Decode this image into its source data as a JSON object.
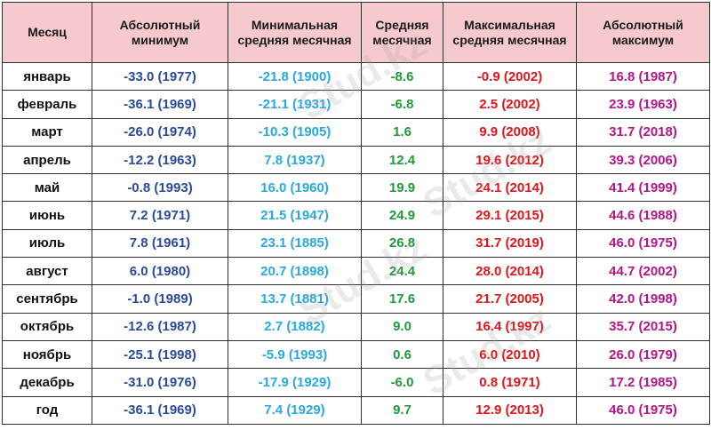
{
  "headers": {
    "month": "Месяц",
    "abs_min": "Абсолютный минимум",
    "min_avg": "Минимальная средняя месячная",
    "avg": "Средняя месячная",
    "max_avg": "Максимальная средняя месячная",
    "abs_max": "Абсолютный максимум"
  },
  "rows": [
    {
      "month": "январь",
      "abs_min": "-33.0 (1977)",
      "min_avg": "-21.8 (1900)",
      "avg": "-8.6",
      "max_avg": "-0.9 (2002)",
      "abs_max": "16.8 (1987)"
    },
    {
      "month": "февраль",
      "abs_min": "-36.1 (1969)",
      "min_avg": "-21.1 (1931)",
      "avg": "-6.8",
      "max_avg": "2.5 (2002)",
      "abs_max": "23.9 (1963)"
    },
    {
      "month": "март",
      "abs_min": "-26.0 (1974)",
      "min_avg": "-10.3 (1905)",
      "avg": "1.6",
      "max_avg": "9.9 (2008)",
      "abs_max": "31.7 (2018)"
    },
    {
      "month": "апрель",
      "abs_min": "-12.2 (1963)",
      "min_avg": "7.8 (1937)",
      "avg": "12.4",
      "max_avg": "19.6 (2012)",
      "abs_max": "39.3 (2006)"
    },
    {
      "month": "май",
      "abs_min": "-0.8 (1993)",
      "min_avg": "16.0 (1960)",
      "avg": "19.9",
      "max_avg": "24.1 (2014)",
      "abs_max": "41.4 (1999)"
    },
    {
      "month": "июнь",
      "abs_min": "7.2 (1971)",
      "min_avg": "21.5 (1947)",
      "avg": "24.9",
      "max_avg": "29.1 (2015)",
      "abs_max": "44.6 (1988)"
    },
    {
      "month": "июль",
      "abs_min": "7.8 (1961)",
      "min_avg": "23.1 (1885)",
      "avg": "26.8",
      "max_avg": "31.7 (2019)",
      "abs_max": "46.0 (1975)"
    },
    {
      "month": "август",
      "abs_min": "6.0 (1980)",
      "min_avg": "20.7 (1898)",
      "avg": "24.4",
      "max_avg": "28.0 (2014)",
      "abs_max": "44.7 (2002)"
    },
    {
      "month": "сентябрь",
      "abs_min": "-1.0 (1989)",
      "min_avg": "13.7 (1881)",
      "avg": "17.6",
      "max_avg": "21.7 (2005)",
      "abs_max": "42.0 (1998)"
    },
    {
      "month": "октябрь",
      "abs_min": "-12.6 (1987)",
      "min_avg": "2.7 (1882)",
      "avg": "9.0",
      "max_avg": "16.4 (1997)",
      "abs_max": "35.7 (2015)"
    },
    {
      "month": "ноябрь",
      "abs_min": "-25.1 (1998)",
      "min_avg": "-5.9 (1993)",
      "avg": "0.6",
      "max_avg": "6.0 (2010)",
      "abs_max": "26.0 (1979)"
    },
    {
      "month": "декабрь",
      "abs_min": "-31.0 (1976)",
      "min_avg": "-17.9 (1929)",
      "avg": "-6.0",
      "max_avg": "0.8 (1971)",
      "abs_max": "17.2 (1985)"
    },
    {
      "month": "год",
      "abs_min": "-36.1 (1969)",
      "min_avg": "7.4 (1929)",
      "avg": "9.7",
      "max_avg": "12.9 (2013)",
      "abs_max": "46.0 (1975)"
    }
  ],
  "watermark": "Stud.kz",
  "colors": {
    "header_bg": "#f6c9cf",
    "abs_min": "#2a4a9a",
    "min_avg": "#29a9df",
    "avg": "#1f9a3a",
    "max_avg": "#e0161b",
    "abs_max": "#b4158c"
  }
}
